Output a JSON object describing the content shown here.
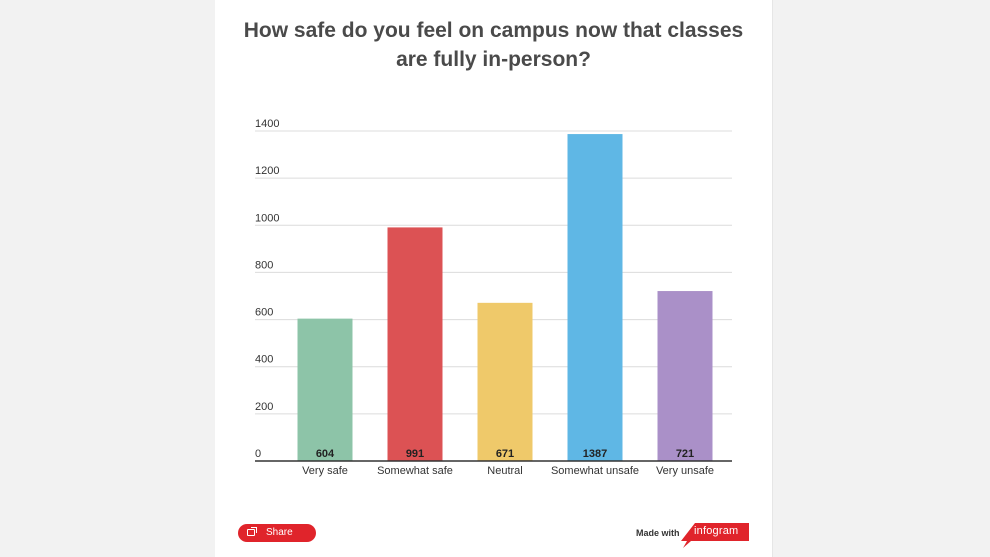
{
  "chart_data": {
    "type": "bar",
    "title": "How safe do you feel on campus now that classes are fully in-person?",
    "title_lines": [
      "How safe do you feel on campus now that classes",
      "are fully in-person?"
    ],
    "categories": [
      "Very safe",
      "Somewhat safe",
      "Neutral",
      "Somewhat unsafe",
      "Very unsafe"
    ],
    "values": [
      604,
      991,
      671,
      1387,
      721
    ],
    "colors": [
      "#8dc4a8",
      "#dc5254",
      "#efc96a",
      "#5fb7e5",
      "#aa90c8"
    ],
    "ylim": [
      0,
      1400
    ],
    "yticks": [
      0,
      200,
      400,
      600,
      800,
      1000,
      1200,
      1400
    ],
    "grid": true,
    "xlabel": "",
    "ylabel": ""
  },
  "footer": {
    "share_label": "Share",
    "made_with": "Made with",
    "brand": "infogram",
    "brand_color": "#e0242b"
  }
}
